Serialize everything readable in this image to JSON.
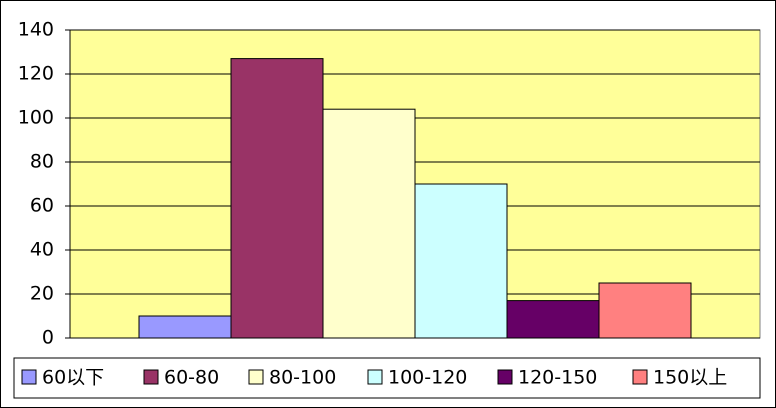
{
  "chart_data": {
    "type": "bar",
    "categories": [
      null
    ],
    "series": [
      {
        "name": "60以下",
        "color": "#9999ff",
        "values": [
          10
        ]
      },
      {
        "name": "60-80",
        "color": "#993366",
        "values": [
          127
        ]
      },
      {
        "name": "80-100",
        "color": "#ffffcc",
        "values": [
          104
        ]
      },
      {
        "name": "100-120",
        "color": "#ccffff",
        "values": [
          70
        ]
      },
      {
        "name": "120-150",
        "color": "#660066",
        "values": [
          17
        ]
      },
      {
        "name": "150以上",
        "color": "#ff8080",
        "values": [
          25
        ]
      }
    ],
    "ylim": [
      0,
      140
    ],
    "yticks": [
      0,
      20,
      40,
      60,
      80,
      100,
      120,
      140
    ],
    "grid": true,
    "plot_background": "#ffff99",
    "legend": "bottom"
  }
}
